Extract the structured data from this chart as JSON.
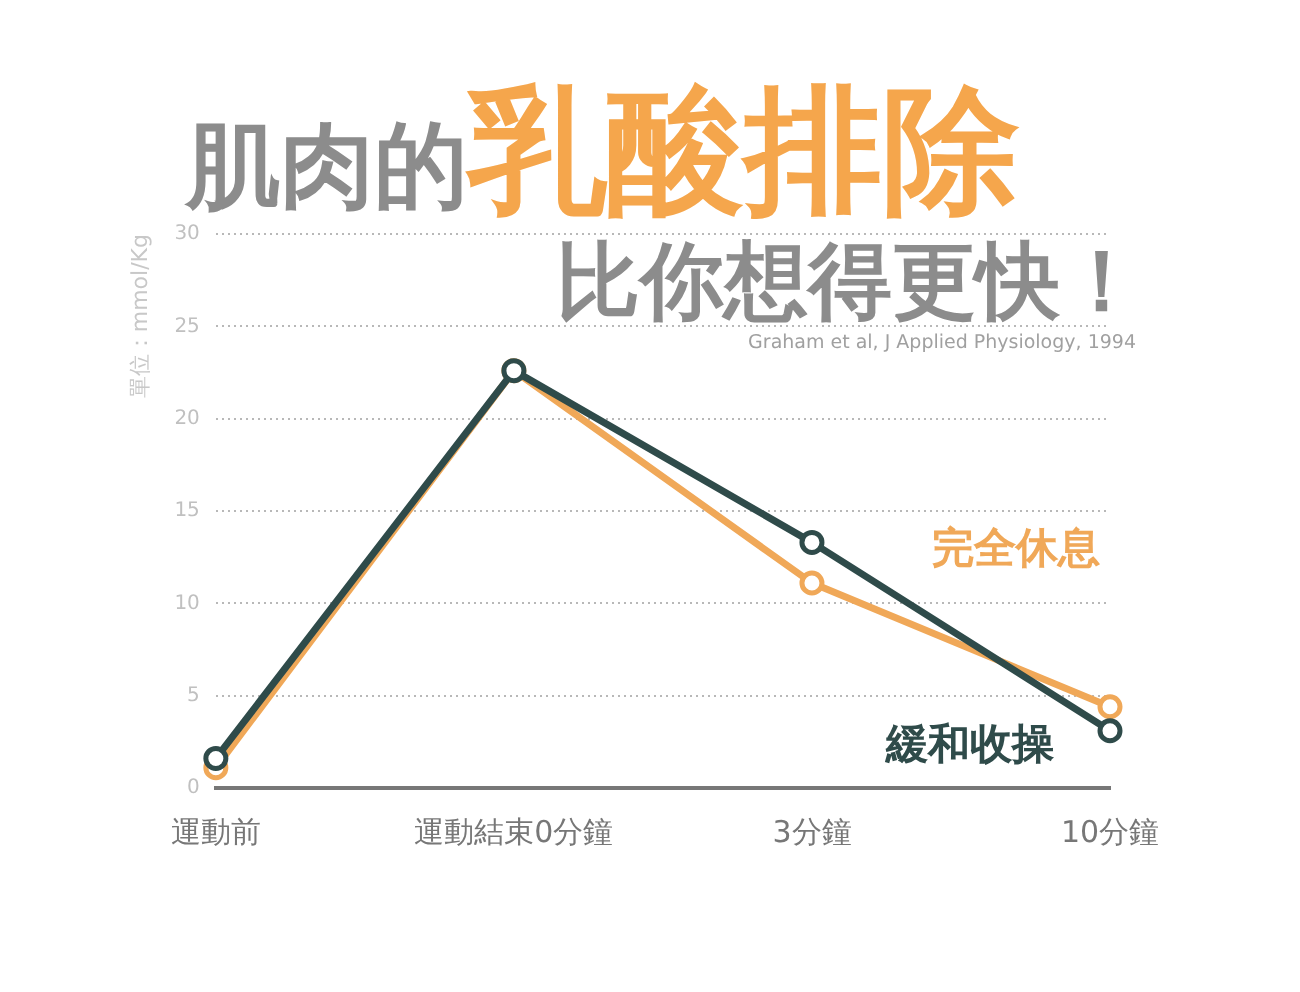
{
  "chart_data": {
    "type": "line",
    "title": "肌肉的乳酸排除",
    "subtitle": "比你想得更快！",
    "ylabel": "單位：mmol/Kg",
    "annotations": [
      "Graham et al, J Applied Physiology, 1994"
    ],
    "categories": [
      "運動前",
      "運動結束0分鐘",
      "3分鐘",
      "10分鐘"
    ],
    "series": [
      {
        "name": "完全休息",
        "color": "#f0a858",
        "values": [
          1.1,
          22.6,
          11.1,
          4.4
        ]
      },
      {
        "name": "緩和收操",
        "color": "#2f4b4a",
        "values": [
          1.6,
          22.6,
          13.3,
          3.1
        ]
      }
    ],
    "ylim": [
      0,
      30
    ],
    "yticks": [
      0,
      5,
      10,
      15,
      20,
      25,
      30
    ],
    "grid": "y",
    "legend": false,
    "marker": "circle",
    "line_style": "solid"
  }
}
